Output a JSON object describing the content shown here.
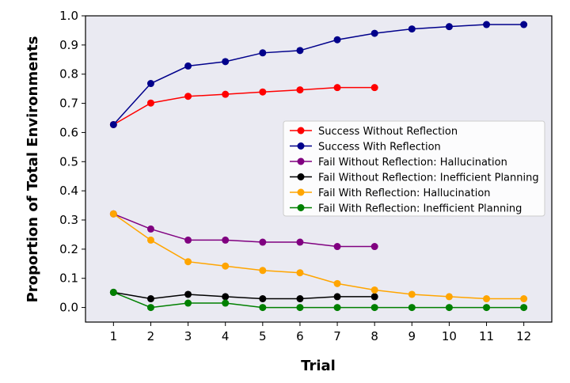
{
  "chart_data": {
    "type": "line",
    "title": "",
    "xlabel": "Trial",
    "ylabel": "Proportion of Total Environments",
    "xlim": [
      0.25,
      12.75
    ],
    "ylim": [
      -0.05,
      1.0
    ],
    "xticks": [
      1,
      2,
      3,
      4,
      5,
      6,
      7,
      8,
      9,
      10,
      11,
      12
    ],
    "yticks": [
      0.0,
      0.1,
      0.2,
      0.3,
      0.4,
      0.5,
      0.6,
      0.7,
      0.8,
      0.9,
      1.0
    ],
    "ytick_labels": [
      "0.0",
      "0.1",
      "0.2",
      "0.3",
      "0.4",
      "0.5",
      "0.6",
      "0.7",
      "0.8",
      "0.9",
      "1.0"
    ],
    "grid": false,
    "background": "#eaeaf2",
    "legend_position": "center-right",
    "series": [
      {
        "name": "Success Without Reflection",
        "color": "#ff0000",
        "x": [
          1,
          2,
          3,
          4,
          5,
          6,
          7,
          8
        ],
        "values": [
          0.627,
          0.701,
          0.724,
          0.731,
          0.739,
          0.746,
          0.754,
          0.754
        ]
      },
      {
        "name": "Success With Reflection",
        "color": "#00008b",
        "x": [
          1,
          2,
          3,
          4,
          5,
          6,
          7,
          8,
          9,
          10,
          11,
          12
        ],
        "values": [
          0.627,
          0.768,
          0.828,
          0.843,
          0.873,
          0.881,
          0.918,
          0.94,
          0.955,
          0.963,
          0.97,
          0.97
        ]
      },
      {
        "name": "Fail Without Reflection: Hallucination",
        "color": "#800080",
        "x": [
          1,
          2,
          3,
          4,
          5,
          6,
          7,
          8
        ],
        "values": [
          0.321,
          0.269,
          0.231,
          0.231,
          0.224,
          0.224,
          0.209,
          0.209
        ]
      },
      {
        "name": "Fail Without Reflection: Inefficient Planning",
        "color": "#000000",
        "x": [
          1,
          2,
          3,
          4,
          5,
          6,
          7,
          8
        ],
        "values": [
          0.052,
          0.03,
          0.045,
          0.037,
          0.03,
          0.03,
          0.037,
          0.037
        ]
      },
      {
        "name": "Fail With Reflection: Hallucination",
        "color": "#ffa500",
        "x": [
          1,
          2,
          3,
          4,
          5,
          6,
          7,
          8,
          9,
          10,
          11,
          12
        ],
        "values": [
          0.321,
          0.231,
          0.157,
          0.142,
          0.127,
          0.119,
          0.082,
          0.06,
          0.045,
          0.037,
          0.03,
          0.03
        ]
      },
      {
        "name": "Fail With Reflection: Inefficient Planning",
        "color": "#008000",
        "x": [
          1,
          2,
          3,
          4,
          5,
          6,
          7,
          8,
          9,
          10,
          11,
          12
        ],
        "values": [
          0.052,
          0.0,
          0.015,
          0.015,
          0.0,
          0.0,
          0.0,
          0.0,
          0.0,
          0.0,
          0.0,
          0.0
        ]
      }
    ]
  }
}
